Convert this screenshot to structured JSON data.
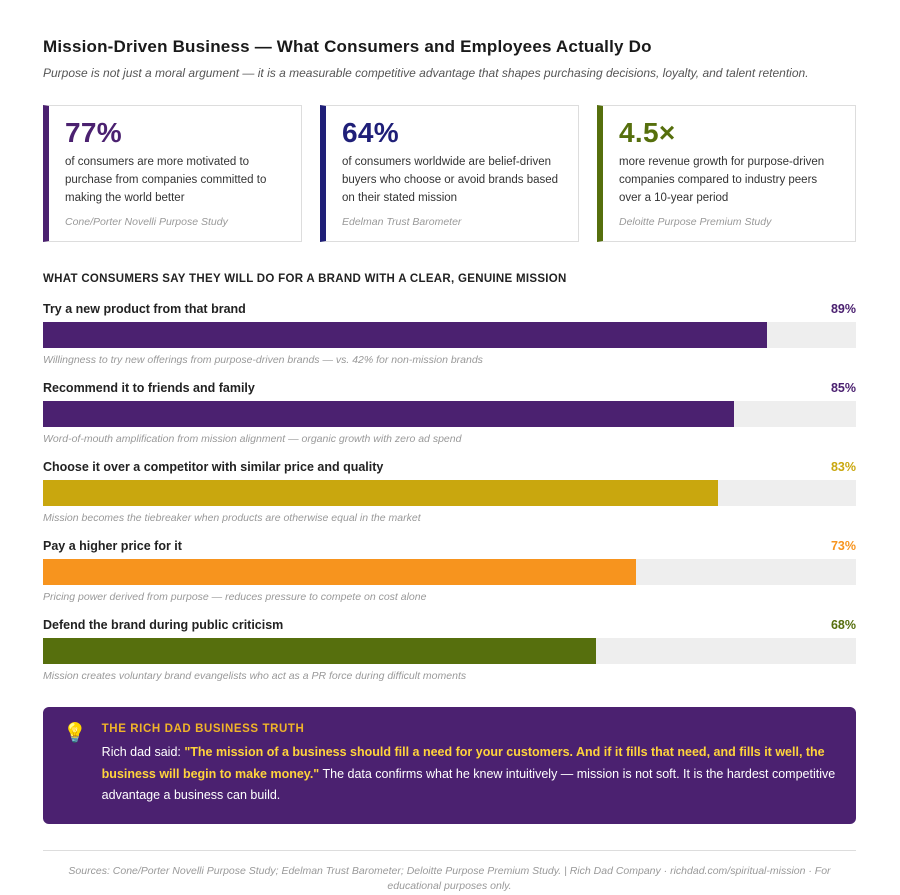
{
  "page": {
    "title": "Mission-Driven Business — What Consumers and Employees Actually Do",
    "subtitle": "Purpose is not just a moral argument — it is a measurable competitive advantage that shapes purchasing decisions, loyalty, and talent retention."
  },
  "stats": [
    {
      "value": "77%",
      "accent": "#4B2170",
      "description": "of consumers are more motivated to purchase from companies committed to making the world better",
      "source": "Cone/Porter Novelli Purpose Study"
    },
    {
      "value": "64%",
      "accent": "#1F1F78",
      "description": "of consumers worldwide are belief-driven buyers who choose or avoid brands based on their stated mission",
      "source": "Edelman Trust Barometer"
    },
    {
      "value": "4.5×",
      "accent": "#566F0D",
      "description": "more revenue growth for purpose-driven companies compared to industry peers over a 10-year period",
      "source": "Deloitte Purpose Premium Study"
    }
  ],
  "chart": {
    "heading": "WHAT CONSUMERS SAY THEY WILL DO FOR A BRAND WITH A CLEAR, GENUINE MISSION",
    "track_color": "#eeeeee",
    "bars": [
      {
        "label": "Try a new product from that brand",
        "value": "89%",
        "width": "89%",
        "color": "#4B2170",
        "caption": "Willingness to try new offerings from purpose-driven brands — vs. 42% for non-mission brands"
      },
      {
        "label": "Recommend it to friends and family",
        "value": "85%",
        "width": "85%",
        "color": "#4B2170",
        "caption": "Word-of-mouth amplification from mission alignment — organic growth with zero ad spend"
      },
      {
        "label": "Choose it over a competitor with similar price and quality",
        "value": "83%",
        "width": "83%",
        "color": "#C9A70E",
        "caption": "Mission becomes the tiebreaker when products are otherwise equal in the market"
      },
      {
        "label": "Pay a higher price for it",
        "value": "73%",
        "width": "73%",
        "color": "#F7941E",
        "caption": "Pricing power derived from purpose — reduces pressure to compete on cost alone"
      },
      {
        "label": "Defend the brand during public criticism",
        "value": "68%",
        "width": "68%",
        "color": "#566F0D",
        "caption": "Mission creates voluntary brand evangelists who act as a PR force during difficult moments"
      }
    ]
  },
  "chart_data": {
    "type": "bar",
    "orientation": "horizontal",
    "title": "WHAT CONSUMERS SAY THEY WILL DO FOR A BRAND WITH A CLEAR, GENUINE MISSION",
    "categories": [
      "Try a new product from that brand",
      "Recommend it to friends and family",
      "Choose it over a competitor with similar price and quality",
      "Pay a higher price for it",
      "Defend the brand during public criticism"
    ],
    "values": [
      89,
      85,
      83,
      73,
      68
    ],
    "unit": "%",
    "xlim": [
      0,
      100
    ],
    "bar_colors": [
      "#4B2170",
      "#4B2170",
      "#C9A70E",
      "#F7941E",
      "#566F0D"
    ],
    "value_labels": [
      "89%",
      "85%",
      "83%",
      "73%",
      "68%"
    ],
    "annotations": [
      "Willingness to try new offerings from purpose-driven brands — vs. 42% for non-mission brands",
      "Word-of-mouth amplification from mission alignment — organic growth with zero ad spend",
      "Mission becomes the tiebreaker when products are otherwise equal in the market",
      "Pricing power derived from purpose — reduces pressure to compete on cost alone",
      "Mission creates voluntary brand evangelists who act as a PR force during difficult moments"
    ],
    "grid": false,
    "legend": false
  },
  "callout": {
    "icon_glyph": "💡",
    "heading": "THE RICH DAD BUSINESS TRUTH",
    "intro": "Rich dad said: ",
    "quote": "\"The mission of a business should fill a need for your customers. And if it fills that need, and fills it well, the business will begin to make money.\"",
    "outro": " The data confirms what he knew intuitively — mission is not soft. It is the hardest competitive advantage a business can build.",
    "background": "#4B2170",
    "heading_color": "#F0B429",
    "quote_color": "#FFD43B"
  },
  "footer": {
    "text": "Sources: Cone/Porter Novelli Purpose Study; Edelman Trust Barometer; Deloitte Purpose Premium Study.  |  Rich Dad Company · richdad.com/spiritual-mission  ·  For educational purposes only."
  }
}
